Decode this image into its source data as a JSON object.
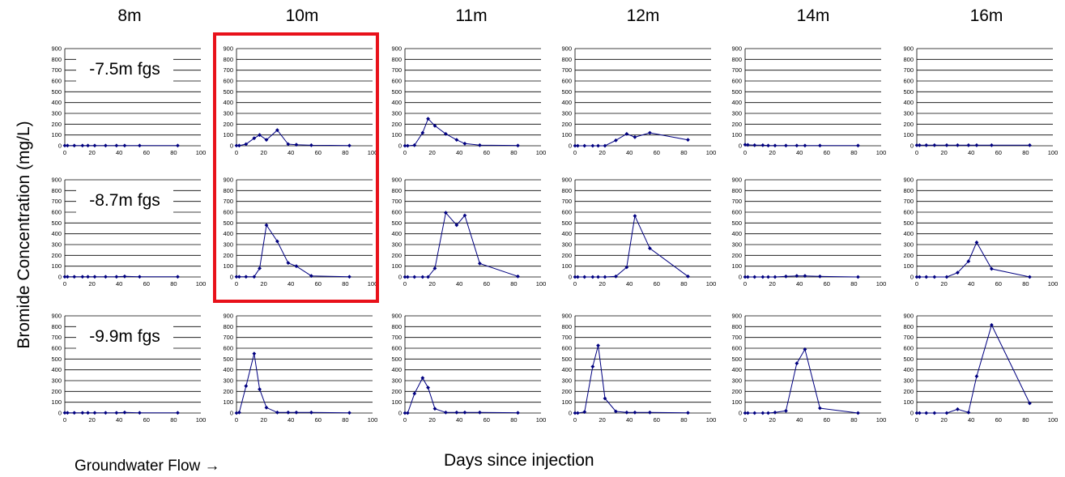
{
  "columns": [
    "8m",
    "10m",
    "11m",
    "12m",
    "14m",
    "16m"
  ],
  "rows": [
    "-7.5m fgs",
    "-8.7m fgs",
    "-9.9m fgs"
  ],
  "y_axis_title": "Bromide Concentration (mg/L)",
  "x_axis_title": "Days since injection",
  "flow_note": "Groundwater Flow →",
  "highlight": {
    "column": "10m",
    "rows": [
      "-7.5m fgs",
      "-8.7m fgs"
    ],
    "color": "#e8111a"
  },
  "line_color": "#000080",
  "chart_data": {
    "type": "line",
    "shared_axes": {
      "x_ticks": [
        0,
        20,
        40,
        60,
        80,
        100
      ],
      "y_ticks": [
        0,
        100,
        200,
        300,
        400,
        500,
        600,
        700,
        800,
        900
      ],
      "xlim": [
        0,
        100
      ],
      "ylim": [
        0,
        900
      ],
      "grid": "horizontal"
    },
    "panels": [
      {
        "row": "-7.5m fgs",
        "column": "8m",
        "x": [
          0,
          2,
          7,
          13,
          17,
          22,
          30,
          38,
          44,
          55,
          83
        ],
        "y": [
          2,
          2,
          2,
          2,
          2,
          2,
          2,
          2,
          2,
          2,
          2
        ]
      },
      {
        "row": "-7.5m fgs",
        "column": "10m",
        "x": [
          0,
          2,
          7,
          13,
          17,
          22,
          30,
          38,
          44,
          55,
          83
        ],
        "y": [
          2,
          2,
          15,
          70,
          100,
          55,
          145,
          15,
          10,
          5,
          2
        ]
      },
      {
        "row": "-7.5m fgs",
        "column": "11m",
        "x": [
          0,
          2,
          7,
          13,
          17,
          22,
          30,
          38,
          44,
          55,
          83
        ],
        "y": [
          0,
          0,
          5,
          120,
          250,
          185,
          110,
          55,
          20,
          5,
          2
        ]
      },
      {
        "row": "-7.5m fgs",
        "column": "12m",
        "x": [
          0,
          2,
          7,
          13,
          17,
          22,
          30,
          38,
          44,
          55,
          83
        ],
        "y": [
          0,
          0,
          0,
          0,
          0,
          0,
          50,
          110,
          80,
          120,
          55
        ]
      },
      {
        "row": "-7.5m fgs",
        "column": "14m",
        "x": [
          0,
          2,
          7,
          13,
          17,
          22,
          30,
          38,
          44,
          55,
          83
        ],
        "y": [
          10,
          8,
          5,
          5,
          2,
          2,
          2,
          2,
          2,
          2,
          2
        ]
      },
      {
        "row": "-7.5m fgs",
        "column": "16m",
        "x": [
          0,
          2,
          7,
          13,
          22,
          30,
          38,
          44,
          55,
          83
        ],
        "y": [
          5,
          5,
          5,
          5,
          5,
          5,
          5,
          5,
          5,
          5
        ]
      },
      {
        "row": "-8.7m fgs",
        "column": "8m",
        "x": [
          0,
          2,
          7,
          13,
          17,
          22,
          30,
          38,
          44,
          55,
          83
        ],
        "y": [
          2,
          2,
          2,
          2,
          2,
          2,
          2,
          2,
          5,
          2,
          2
        ]
      },
      {
        "row": "-8.7m fgs",
        "column": "10m",
        "x": [
          0,
          2,
          7,
          13,
          17,
          22,
          30,
          38,
          44,
          55,
          83
        ],
        "y": [
          2,
          2,
          2,
          2,
          80,
          480,
          330,
          130,
          100,
          10,
          2
        ]
      },
      {
        "row": "-8.7m fgs",
        "column": "11m",
        "x": [
          0,
          2,
          7,
          13,
          17,
          22,
          30,
          38,
          44,
          55,
          83
        ],
        "y": [
          0,
          0,
          0,
          0,
          0,
          80,
          595,
          480,
          570,
          125,
          5
        ]
      },
      {
        "row": "-8.7m fgs",
        "column": "12m",
        "x": [
          0,
          2,
          7,
          13,
          17,
          22,
          30,
          38,
          44,
          55,
          83
        ],
        "y": [
          0,
          0,
          0,
          0,
          0,
          0,
          5,
          90,
          565,
          265,
          5
        ]
      },
      {
        "row": "-8.7m fgs",
        "column": "14m",
        "x": [
          0,
          2,
          7,
          13,
          17,
          22,
          30,
          38,
          44,
          55,
          83
        ],
        "y": [
          0,
          0,
          0,
          0,
          0,
          0,
          5,
          10,
          10,
          5,
          0
        ]
      },
      {
        "row": "-8.7m fgs",
        "column": "16m",
        "x": [
          0,
          2,
          7,
          13,
          22,
          30,
          38,
          44,
          55,
          83
        ],
        "y": [
          0,
          0,
          0,
          0,
          0,
          40,
          145,
          320,
          75,
          0
        ]
      },
      {
        "row": "-9.9m fgs",
        "column": "8m",
        "x": [
          0,
          2,
          7,
          13,
          17,
          22,
          30,
          38,
          44,
          55,
          83
        ],
        "y": [
          2,
          2,
          2,
          2,
          2,
          2,
          2,
          2,
          5,
          2,
          2
        ]
      },
      {
        "row": "-9.9m fgs",
        "column": "10m",
        "x": [
          0,
          2,
          7,
          13,
          17,
          22,
          30,
          38,
          44,
          55,
          83
        ],
        "y": [
          0,
          5,
          250,
          550,
          220,
          50,
          5,
          5,
          5,
          5,
          2
        ]
      },
      {
        "row": "-9.9m fgs",
        "column": "11m",
        "x": [
          0,
          2,
          7,
          13,
          17,
          22,
          30,
          38,
          44,
          55,
          83
        ],
        "y": [
          0,
          0,
          180,
          325,
          235,
          40,
          5,
          5,
          5,
          5,
          2
        ]
      },
      {
        "row": "-9.9m fgs",
        "column": "12m",
        "x": [
          0,
          2,
          7,
          13,
          17,
          22,
          30,
          38,
          44,
          55,
          83
        ],
        "y": [
          0,
          0,
          10,
          430,
          625,
          135,
          15,
          5,
          5,
          5,
          2
        ]
      },
      {
        "row": "-9.9m fgs",
        "column": "14m",
        "x": [
          0,
          2,
          7,
          13,
          17,
          22,
          30,
          38,
          44,
          55,
          83
        ],
        "y": [
          0,
          0,
          0,
          0,
          0,
          5,
          20,
          460,
          590,
          45,
          0
        ]
      },
      {
        "row": "-9.9m fgs",
        "column": "16m",
        "x": [
          0,
          2,
          7,
          13,
          22,
          30,
          38,
          44,
          55,
          83
        ],
        "y": [
          0,
          0,
          0,
          0,
          0,
          35,
          5,
          340,
          815,
          90
        ]
      }
    ]
  }
}
